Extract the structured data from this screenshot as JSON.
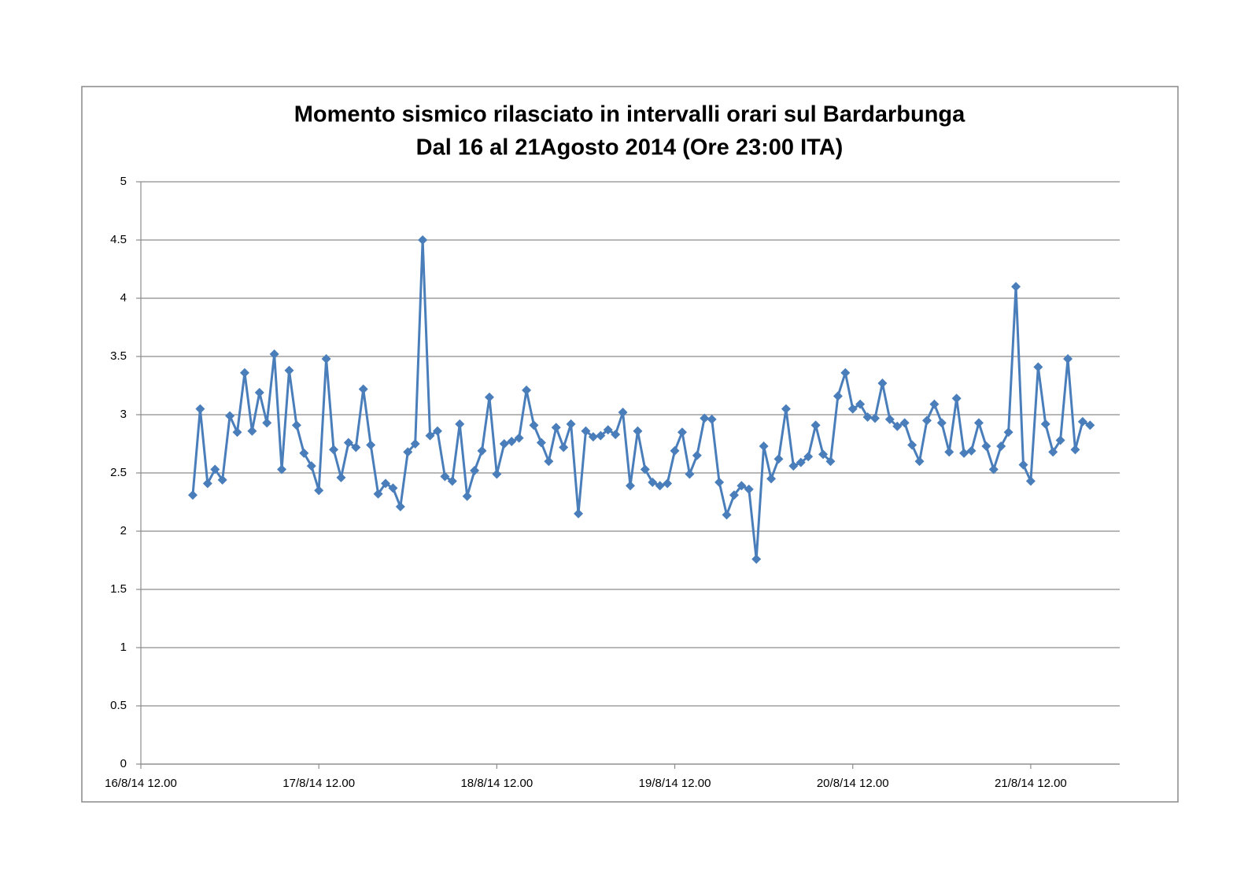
{
  "chart_data": {
    "type": "line",
    "title": [
      "Momento sismico rilasciato in intervalli orari sul Bardarbunga",
      "Dal 16 al 21Agosto 2014 (Ore 23:00 ITA)"
    ],
    "x": [
      "2014-08-16T19:00",
      "2014-08-16T20:00",
      "2014-08-16T21:00",
      "2014-08-16T22:00",
      "2014-08-16T23:00",
      "2014-08-17T00:00",
      "2014-08-17T01:00",
      "2014-08-17T02:00",
      "2014-08-17T03:00",
      "2014-08-17T04:00",
      "2014-08-17T05:00",
      "2014-08-17T06:00",
      "2014-08-17T07:00",
      "2014-08-17T08:00",
      "2014-08-17T09:00",
      "2014-08-17T10:00",
      "2014-08-17T11:00",
      "2014-08-17T12:00",
      "2014-08-17T13:00",
      "2014-08-17T14:00",
      "2014-08-17T15:00",
      "2014-08-17T16:00",
      "2014-08-17T17:00",
      "2014-08-17T18:00",
      "2014-08-17T19:00",
      "2014-08-17T20:00",
      "2014-08-17T21:00",
      "2014-08-17T22:00",
      "2014-08-17T23:00",
      "2014-08-18T00:00",
      "2014-08-18T01:00",
      "2014-08-18T02:00",
      "2014-08-18T03:00",
      "2014-08-18T04:00",
      "2014-08-18T05:00",
      "2014-08-18T06:00",
      "2014-08-18T07:00",
      "2014-08-18T08:00",
      "2014-08-18T09:00",
      "2014-08-18T10:00",
      "2014-08-18T11:00",
      "2014-08-18T12:00",
      "2014-08-18T13:00",
      "2014-08-18T14:00",
      "2014-08-18T15:00",
      "2014-08-18T16:00",
      "2014-08-18T17:00",
      "2014-08-18T18:00",
      "2014-08-18T19:00",
      "2014-08-18T20:00",
      "2014-08-18T21:00",
      "2014-08-18T22:00",
      "2014-08-18T23:00",
      "2014-08-19T00:00",
      "2014-08-19T01:00",
      "2014-08-19T02:00",
      "2014-08-19T03:00",
      "2014-08-19T04:00",
      "2014-08-19T05:00",
      "2014-08-19T06:00",
      "2014-08-19T07:00",
      "2014-08-19T08:00",
      "2014-08-19T09:00",
      "2014-08-19T10:00",
      "2014-08-19T11:00",
      "2014-08-19T12:00",
      "2014-08-19T13:00",
      "2014-08-19T14:00",
      "2014-08-19T15:00",
      "2014-08-19T16:00",
      "2014-08-19T17:00",
      "2014-08-19T18:00",
      "2014-08-19T19:00",
      "2014-08-19T20:00",
      "2014-08-19T21:00",
      "2014-08-19T22:00",
      "2014-08-19T23:00",
      "2014-08-20T00:00",
      "2014-08-20T01:00",
      "2014-08-20T02:00",
      "2014-08-20T03:00",
      "2014-08-20T04:00",
      "2014-08-20T05:00",
      "2014-08-20T06:00",
      "2014-08-20T07:00",
      "2014-08-20T08:00",
      "2014-08-20T09:00",
      "2014-08-20T10:00",
      "2014-08-20T11:00",
      "2014-08-20T12:00",
      "2014-08-20T13:00",
      "2014-08-20T14:00",
      "2014-08-20T15:00",
      "2014-08-20T16:00",
      "2014-08-20T17:00",
      "2014-08-20T18:00",
      "2014-08-20T19:00",
      "2014-08-20T20:00",
      "2014-08-20T21:00",
      "2014-08-20T22:00",
      "2014-08-20T23:00",
      "2014-08-21T00:00",
      "2014-08-21T01:00",
      "2014-08-21T02:00",
      "2014-08-21T03:00",
      "2014-08-21T04:00",
      "2014-08-21T05:00",
      "2014-08-21T06:00",
      "2014-08-21T07:00",
      "2014-08-21T08:00",
      "2014-08-21T09:00",
      "2014-08-21T10:00",
      "2014-08-21T11:00",
      "2014-08-21T12:00",
      "2014-08-21T13:00",
      "2014-08-21T14:00",
      "2014-08-21T15:00",
      "2014-08-21T16:00",
      "2014-08-21T17:00",
      "2014-08-21T18:00",
      "2014-08-21T19:00",
      "2014-08-21T20:00"
    ],
    "series": [
      {
        "color": "#4a7ebb",
        "values": [
          2.31,
          3.05,
          2.41,
          2.53,
          2.44,
          2.99,
          2.85,
          3.36,
          2.86,
          3.19,
          2.93,
          3.52,
          2.53,
          3.38,
          2.91,
          2.67,
          2.56,
          2.35,
          3.48,
          2.7,
          2.46,
          2.76,
          2.72,
          3.22,
          2.74,
          2.32,
          2.41,
          2.37,
          2.21,
          2.68,
          2.75,
          4.5,
          2.82,
          2.86,
          2.47,
          2.43,
          2.92,
          2.3,
          2.52,
          2.69,
          3.15,
          2.49,
          2.75,
          2.77,
          2.8,
          3.21,
          2.91,
          2.76,
          2.6,
          2.89,
          2.72,
          2.92,
          2.15,
          2.86,
          2.81,
          2.82,
          2.87,
          2.83,
          3.02,
          2.39,
          2.86,
          2.53,
          2.42,
          2.39,
          2.41,
          2.69,
          2.85,
          2.49,
          2.65,
          2.97,
          2.96,
          2.42,
          2.14,
          2.31,
          2.39,
          2.36,
          1.76,
          2.73,
          2.45,
          2.62,
          3.05,
          2.56,
          2.59,
          2.64,
          2.91,
          2.66,
          2.6,
          3.16,
          3.36,
          3.05,
          3.09,
          2.98,
          2.97,
          3.27,
          2.96,
          2.9,
          2.93,
          2.74,
          2.6,
          2.95,
          3.09,
          2.93,
          2.68,
          3.14,
          2.67,
          2.69,
          2.93,
          2.73,
          2.53,
          2.73,
          2.85,
          4.1,
          2.57,
          2.43,
          3.41,
          2.92,
          2.68,
          2.78,
          3.48,
          2.7,
          2.94,
          2.91
        ]
      }
    ],
    "xlim": [
      "2014-08-16T12:00",
      "2014-08-22T00:00"
    ],
    "xticks": [
      {
        "value": "2014-08-16T12:00",
        "label": "16/8/14 12.00"
      },
      {
        "value": "2014-08-17T12:00",
        "label": "17/8/14 12.00"
      },
      {
        "value": "2014-08-18T12:00",
        "label": "18/8/14 12.00"
      },
      {
        "value": "2014-08-19T12:00",
        "label": "19/8/14 12.00"
      },
      {
        "value": "2014-08-20T12:00",
        "label": "20/8/14 12.00"
      },
      {
        "value": "2014-08-21T12:00",
        "label": "21/8/14 12.00"
      }
    ],
    "ylim": [
      0,
      5
    ],
    "yticks": [
      0,
      0.5,
      1,
      1.5,
      2,
      2.5,
      3,
      3.5,
      4,
      4.5,
      5
    ],
    "grid": true,
    "marker": "diamond"
  }
}
